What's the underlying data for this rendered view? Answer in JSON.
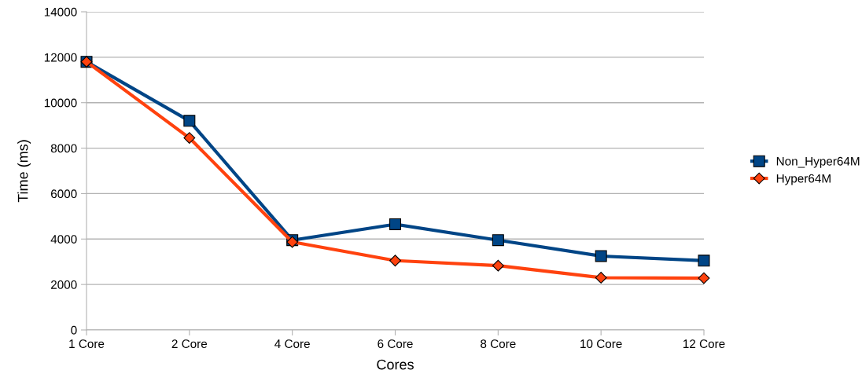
{
  "chart_data": {
    "type": "line",
    "xlabel": "Cores",
    "ylabel": "Time (ms)",
    "categories": [
      "1 Core",
      "2 Core",
      "4 Core",
      "6 Core",
      "8 Core",
      "10 Core",
      "12 Core"
    ],
    "series": [
      {
        "name": "Non_Hyper64M",
        "color": "#004586",
        "marker": "square",
        "values": [
          11800,
          9200,
          3950,
          4650,
          3950,
          3250,
          3050
        ]
      },
      {
        "name": "Hyper64M",
        "color": "#ff420e",
        "marker": "diamond",
        "values": [
          11800,
          8450,
          3870,
          3050,
          2830,
          2300,
          2280
        ]
      }
    ],
    "ylim": [
      0,
      14000
    ],
    "yticks": [
      0,
      2000,
      4000,
      6000,
      8000,
      10000,
      12000,
      14000
    ],
    "grid": "y",
    "legend": "right",
    "line_style": "solid"
  }
}
